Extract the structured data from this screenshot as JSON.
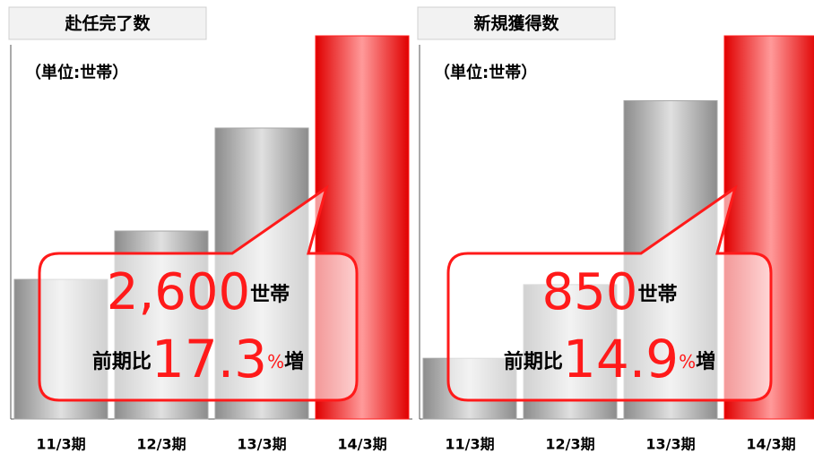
{
  "chart_data": [
    {
      "type": "bar",
      "title": "赴任完了数",
      "subtitle": "（単位:世帯）",
      "categories": [
        "11/3期",
        "12/3期",
        "13/3期",
        "14/3期"
      ],
      "values": [
        1583,
        1785,
        2215,
        2600
      ],
      "colors": [
        "#a6a6a6",
        "#a6a6a6",
        "#a6a6a6",
        "#ff2020"
      ],
      "ylim": [
        1000,
        2600
      ],
      "annotation": {
        "value": 2600,
        "value_label": "2,600",
        "unit": "世帯",
        "prefix": "前期比",
        "change": 17.3,
        "percent": "%",
        "suffix": "増"
      }
    },
    {
      "type": "bar",
      "title": "新規獲得数",
      "subtitle": "（単位:世帯）",
      "categories": [
        "11/3期",
        "12/3期",
        "13/3期",
        "14/3期"
      ],
      "values": [
        303,
        428,
        740,
        850
      ],
      "colors": [
        "#a6a6a6",
        "#a6a6a6",
        "#a6a6a6",
        "#ff2020"
      ],
      "ylim": [
        200,
        850
      ],
      "annotation": {
        "value": 850,
        "value_label": "850",
        "unit": "世帯",
        "prefix": "前期比",
        "change": 14.9,
        "percent": "%",
        "suffix": "増"
      }
    }
  ]
}
